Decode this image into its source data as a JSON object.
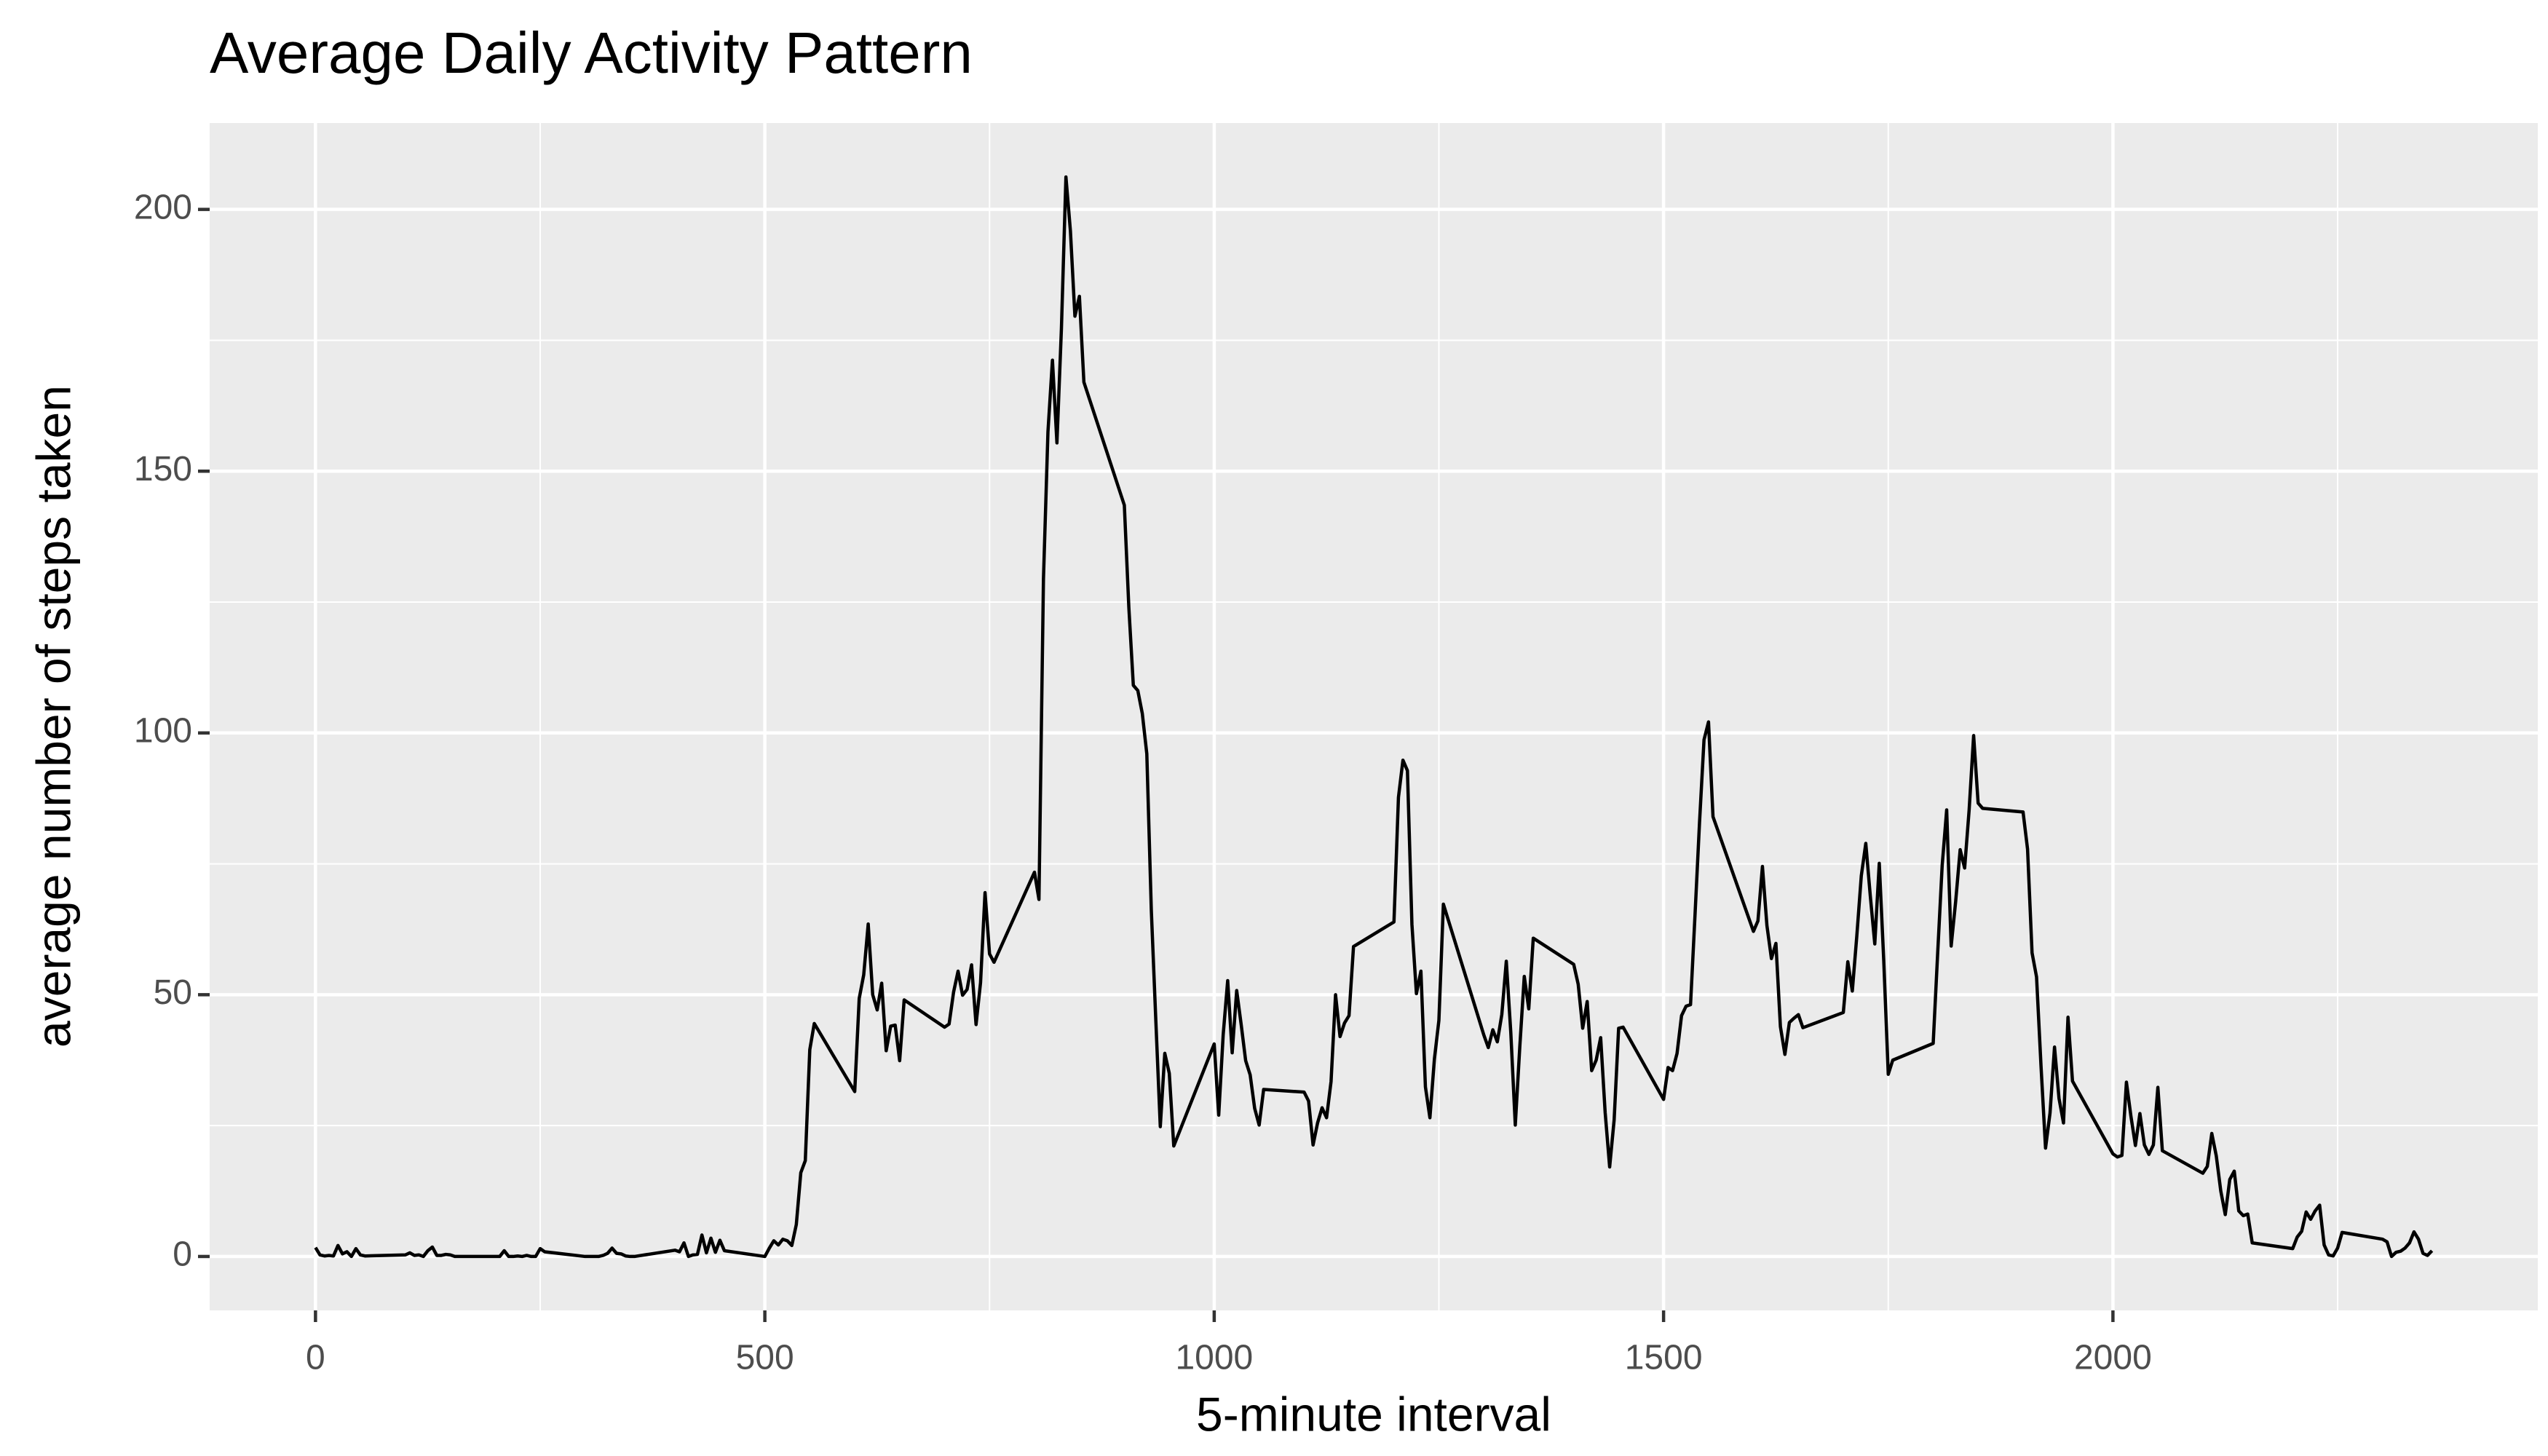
{
  "chart_data": {
    "type": "line",
    "title": "Average Daily Activity Pattern",
    "x_label": "5-minute interval",
    "y_label": "average number of steps taken",
    "color": "#000000",
    "grid": true,
    "xlim": [
      -117.75,
      2472.75
    ],
    "ylim": [
      -10.3,
      216.5
    ],
    "xticks": [
      0,
      500,
      1000,
      1500,
      2000
    ],
    "yticks": [
      0,
      50,
      100,
      150,
      200
    ],
    "xminor": [
      250,
      750,
      1250,
      1750,
      2250
    ],
    "yminor": [
      25,
      75,
      125,
      175
    ],
    "x": [
      0,
      5,
      10,
      15,
      20,
      25,
      30,
      35,
      40,
      45,
      50,
      55,
      100,
      105,
      110,
      115,
      120,
      125,
      130,
      135,
      140,
      145,
      150,
      155,
      200,
      205,
      210,
      215,
      220,
      225,
      230,
      235,
      240,
      245,
      250,
      255,
      300,
      305,
      310,
      315,
      320,
      325,
      330,
      335,
      340,
      345,
      350,
      355,
      400,
      405,
      410,
      415,
      420,
      425,
      430,
      435,
      440,
      445,
      450,
      455,
      500,
      505,
      510,
      515,
      520,
      525,
      530,
      535,
      540,
      545,
      550,
      555,
      600,
      605,
      610,
      615,
      620,
      625,
      630,
      635,
      640,
      645,
      650,
      655,
      700,
      705,
      710,
      715,
      720,
      725,
      730,
      735,
      740,
      745,
      750,
      755,
      800,
      805,
      810,
      815,
      820,
      825,
      830,
      835,
      840,
      845,
      850,
      855,
      900,
      905,
      910,
      915,
      920,
      925,
      930,
      935,
      940,
      945,
      950,
      955,
      1000,
      1005,
      1010,
      1015,
      1020,
      1025,
      1030,
      1035,
      1040,
      1045,
      1050,
      1055,
      1100,
      1105,
      1110,
      1115,
      1120,
      1125,
      1130,
      1135,
      1140,
      1145,
      1150,
      1155,
      1200,
      1205,
      1210,
      1215,
      1220,
      1225,
      1230,
      1235,
      1240,
      1245,
      1250,
      1255,
      1300,
      1305,
      1310,
      1315,
      1320,
      1325,
      1330,
      1335,
      1340,
      1345,
      1350,
      1355,
      1400,
      1405,
      1410,
      1415,
      1420,
      1425,
      1430,
      1435,
      1440,
      1445,
      1450,
      1455,
      1500,
      1505,
      1510,
      1515,
      1520,
      1525,
      1530,
      1535,
      1540,
      1545,
      1550,
      1555,
      1600,
      1605,
      1610,
      1615,
      1620,
      1625,
      1630,
      1635,
      1640,
      1645,
      1650,
      1655,
      1700,
      1705,
      1710,
      1715,
      1720,
      1725,
      1730,
      1735,
      1740,
      1745,
      1750,
      1755,
      1800,
      1805,
      1810,
      1815,
      1820,
      1825,
      1830,
      1835,
      1840,
      1845,
      1850,
      1855,
      1900,
      1905,
      1910,
      1915,
      1920,
      1925,
      1930,
      1935,
      1940,
      1945,
      1950,
      1955,
      2000,
      2005,
      2010,
      2015,
      2020,
      2025,
      2030,
      2035,
      2040,
      2045,
      2050,
      2055,
      2100,
      2105,
      2110,
      2115,
      2120,
      2125,
      2130,
      2135,
      2140,
      2145,
      2150,
      2155,
      2200,
      2205,
      2210,
      2215,
      2220,
      2225,
      2230,
      2235,
      2240,
      2245,
      2250,
      2255,
      2300,
      2305,
      2310,
      2315,
      2320,
      2325,
      2330,
      2335,
      2340,
      2345,
      2350,
      2355
    ],
    "values": [
      1.7,
      0.3,
      0.1,
      0.2,
      0.1,
      2.1,
      0.5,
      0.9,
      0,
      1.5,
      0.3,
      0.1,
      0.3,
      0.7,
      0.2,
      0.3,
      0,
      1.1,
      1.8,
      0.2,
      0.2,
      0.4,
      0.3,
      0,
      0,
      0,
      1.1,
      0,
      0,
      0.1,
      0,
      0.2,
      0,
      0,
      1.5,
      0.9,
      0,
      0,
      0,
      0,
      0.2,
      0.6,
      1.6,
      0.6,
      0.5,
      0.1,
      0,
      0,
      1.2,
      0.9,
      2.6,
      0,
      0.3,
      0.4,
      4.1,
      0.7,
      3.5,
      0.8,
      3.1,
      1.1,
      0,
      1.6,
      3.0,
      2.2,
      3.3,
      3.0,
      2.1,
      6.1,
      16.0,
      18.3,
      39.5,
      44.5,
      31.5,
      49.3,
      53.8,
      63.5,
      50.0,
      47.1,
      52.2,
      39.3,
      44.0,
      44.2,
      37.4,
      49.0,
      43.8,
      44.4,
      50.5,
      54.5,
      49.9,
      51.0,
      55.7,
      44.3,
      52.3,
      69.5,
      57.8,
      56.2,
      73.4,
      68.2,
      129.4,
      157.5,
      171.2,
      155.4,
      177.3,
      206.2,
      195.9,
      179.6,
      183.4,
      167.0,
      143.5,
      124.0,
      109.1,
      108.1,
      103.7,
      96.0,
      66.2,
      45.2,
      24.8,
      38.8,
      35.0,
      21.1,
      40.6,
      27.0,
      42.4,
      52.7,
      38.9,
      50.8,
      44.3,
      37.4,
      34.7,
      28.3,
      25.1,
      31.9,
      31.4,
      29.7,
      21.3,
      25.5,
      28.4,
      26.5,
      33.4,
      50.0,
      42.0,
      44.6,
      46.0,
      59.2,
      63.9,
      87.7,
      94.8,
      92.8,
      63.4,
      50.2,
      54.5,
      32.4,
      26.5,
      37.7,
      45.1,
      67.3,
      42.3,
      39.9,
      43.3,
      41.0,
      46.2,
      56.4,
      42.8,
      25.1,
      40.0,
      53.5,
      47.3,
      60.8,
      55.8,
      52.0,
      43.6,
      48.7,
      35.5,
      37.5,
      41.8,
      27.5,
      17.1,
      26.1,
      43.6,
      43.8,
      30.0,
      36.1,
      35.5,
      38.8,
      46.0,
      47.8,
      48.1,
      65.3,
      82.9,
      98.7,
      102.1,
      84.0,
      62.1,
      64.1,
      74.5,
      63.2,
      56.9,
      59.8,
      43.9,
      38.6,
      44.7,
      45.5,
      46.2,
      43.7,
      46.6,
      56.3,
      50.7,
      61.2,
      72.7,
      78.9,
      68.9,
      59.7,
      75.1,
      56.5,
      34.8,
      37.5,
      40.7,
      58.0,
      74.7,
      85.3,
      59.3,
      67.8,
      77.7,
      74.2,
      85.3,
      99.5,
      86.6,
      85.6,
      84.9,
      77.8,
      58.0,
      53.4,
      36.3,
      20.7,
      27.4,
      40.0,
      30.2,
      25.5,
      45.7,
      33.5,
      19.6,
      19.0,
      19.3,
      33.3,
      26.8,
      21.2,
      27.3,
      21.3,
      19.5,
      21.3,
      32.3,
      20.2,
      15.9,
      17.2,
      23.5,
      19.2,
      12.5,
      8.0,
      14.7,
      16.3,
      8.7,
      7.8,
      8.1,
      2.6,
      1.5,
      3.7,
      4.8,
      8.5,
      7.1,
      8.7,
      9.8,
      2.2,
      0.3,
      0.1,
      1.6,
      4.6,
      3.3,
      2.8,
      0,
      0.8,
      1.0,
      1.6,
      2.6,
      4.7,
      3.3,
      0.6,
      0.2,
      1.1
    ]
  }
}
